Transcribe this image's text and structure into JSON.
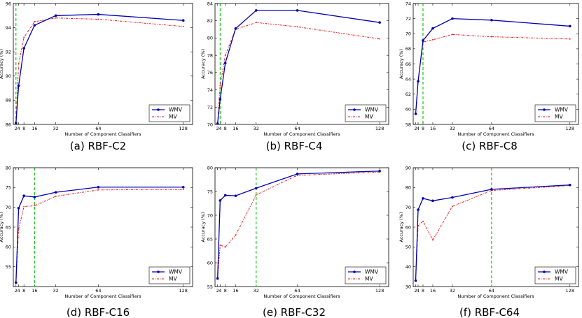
{
  "figure": {
    "panels": [
      {
        "caption": "(a) RBF-C2",
        "chart_data": {
          "type": "line",
          "title": "",
          "xlabel": "Number of Component Classifiers",
          "ylabel": "Accuracy (%)",
          "x": [
            2,
            4,
            8,
            16,
            32,
            64,
            128
          ],
          "xticks": [
            2,
            4,
            8,
            16,
            32,
            64,
            128
          ],
          "xticklabels": [
            "2",
            "4",
            "8",
            "16",
            "32",
            "64",
            "128"
          ],
          "xlim": [
            0,
            135
          ],
          "ylim": [
            86,
            96
          ],
          "yticks": [
            86,
            88,
            90,
            92,
            94,
            96
          ],
          "vline": 2,
          "series": [
            {
              "name": "WMV",
              "values": [
                86.1,
                89.2,
                92.3,
                94.2,
                95.0,
                95.1,
                94.6
              ]
            },
            {
              "name": "MV",
              "values": [
                86.1,
                91.0,
                93.2,
                94.5,
                94.8,
                94.7,
                94.1
              ]
            }
          ],
          "legend": "lower-right"
        }
      },
      {
        "caption": "(b) RBF-C4",
        "chart_data": {
          "type": "line",
          "title": "",
          "xlabel": "Number of Component Classifiers",
          "ylabel": "Accuracy (%)",
          "x": [
            2,
            4,
            8,
            16,
            32,
            64,
            128
          ],
          "xticks": [
            2,
            4,
            8,
            16,
            32,
            64,
            128
          ],
          "xticklabels": [
            "2",
            "4",
            "8",
            "16",
            "32",
            "64",
            "128"
          ],
          "xlim": [
            0,
            135
          ],
          "ylim": [
            70,
            84
          ],
          "yticks": [
            70,
            72,
            74,
            76,
            78,
            80,
            82,
            84
          ],
          "vline": 4,
          "series": [
            {
              "name": "WMV",
              "values": [
                70.1,
                72.9,
                77.1,
                81.1,
                83.2,
                83.2,
                81.8
              ]
            },
            {
              "name": "MV",
              "values": [
                70.1,
                74.5,
                78.0,
                81.0,
                81.8,
                81.3,
                79.9
              ]
            }
          ],
          "legend": "lower-right"
        }
      },
      {
        "caption": "(c) RBF-C8",
        "chart_data": {
          "type": "line",
          "title": "",
          "xlabel": "Number of Component Classifiers",
          "ylabel": "Accuracy (%)",
          "x": [
            2,
            4,
            8,
            16,
            32,
            64,
            128
          ],
          "xticks": [
            2,
            4,
            8,
            16,
            32,
            64,
            128
          ],
          "xticklabels": [
            "2",
            "4",
            "8",
            "16",
            "32",
            "64",
            "128"
          ],
          "xlim": [
            0,
            135
          ],
          "ylim": [
            58,
            74
          ],
          "yticks": [
            58,
            60,
            62,
            64,
            66,
            68,
            70,
            72,
            74
          ],
          "vline": 8,
          "series": [
            {
              "name": "WMV",
              "values": [
                59.4,
                63.7,
                69.1,
                70.7,
                72.0,
                71.8,
                71.0
              ]
            },
            {
              "name": "MV",
              "values": [
                59.4,
                63.7,
                68.9,
                69.2,
                69.9,
                69.6,
                69.3
              ]
            }
          ],
          "legend": "lower-right"
        }
      },
      {
        "caption": "(d) RBF-C16",
        "chart_data": {
          "type": "line",
          "title": "",
          "xlabel": "Number of Component Classifiers",
          "ylabel": "Accuracy (%)",
          "x": [
            2,
            4,
            8,
            16,
            32,
            64,
            128
          ],
          "xticks": [
            2,
            4,
            8,
            16,
            32,
            64,
            128
          ],
          "xticklabels": [
            "2",
            "4",
            "8",
            "16",
            "32",
            "64",
            "128"
          ],
          "xlim": [
            0,
            135
          ],
          "ylim": [
            50,
            80
          ],
          "yticks": [
            50,
            55,
            60,
            65,
            70,
            75,
            80
          ],
          "yticklabels": [
            "",
            "55",
            "60",
            "65",
            "70",
            "75",
            "80"
          ],
          "vline": 16,
          "series": [
            {
              "name": "WMV",
              "values": [
                51.0,
                69.8,
                72.9,
                72.6,
                73.8,
                75.1,
                75.1
              ]
            },
            {
              "name": "MV",
              "values": [
                51.0,
                64.5,
                70.2,
                70.4,
                72.8,
                74.4,
                74.5
              ]
            }
          ],
          "legend": "lower-right"
        }
      },
      {
        "caption": "(e) RBF-C32",
        "chart_data": {
          "type": "line",
          "title": "",
          "xlabel": "Number of Component Classifiers",
          "ylabel": "Accuracy (%)",
          "x": [
            2,
            4,
            8,
            16,
            32,
            64,
            128
          ],
          "xticks": [
            2,
            4,
            8,
            16,
            32,
            64,
            128
          ],
          "xticklabels": [
            "2",
            "4",
            "8",
            "16",
            "32",
            "64",
            "128"
          ],
          "xlim": [
            0,
            135
          ],
          "ylim": [
            55,
            80
          ],
          "yticks": [
            55,
            60,
            65,
            70,
            75,
            80
          ],
          "vline": 32,
          "series": [
            {
              "name": "WMV",
              "values": [
                56.7,
                73.1,
                74.2,
                74.1,
                75.7,
                78.7,
                79.3
              ]
            },
            {
              "name": "MV",
              "values": [
                56.7,
                63.7,
                63.3,
                65.8,
                74.3,
                78.4,
                79.1
              ]
            }
          ],
          "legend": "lower-right"
        }
      },
      {
        "caption": "(f) RBF-C64",
        "chart_data": {
          "type": "line",
          "title": "",
          "xlabel": "Number of Component Classifiers",
          "ylabel": "Accuracy (%)",
          "x": [
            2,
            4,
            8,
            16,
            32,
            64,
            128
          ],
          "xticks": [
            2,
            4,
            8,
            16,
            32,
            64,
            128
          ],
          "xticklabels": [
            "2",
            "4",
            "8",
            "16",
            "32",
            "64",
            "128"
          ],
          "xlim": [
            0,
            135
          ],
          "ylim": [
            30,
            90
          ],
          "yticks": [
            30,
            40,
            50,
            60,
            70,
            80,
            90
          ],
          "vline": 64,
          "series": [
            {
              "name": "WMV",
              "values": [
                33.0,
                68.8,
                74.5,
                73.3,
                75.0,
                79.1,
                81.3
              ]
            },
            {
              "name": "MV",
              "values": [
                33.0,
                60.8,
                63.0,
                53.5,
                70.5,
                78.5,
                81.0
              ]
            }
          ],
          "legend": "lower-right"
        }
      }
    ],
    "colors": {
      "wmv": "#0000b0",
      "mv": "#e8161a",
      "vline": "#00c000",
      "axis": "#000000"
    }
  }
}
